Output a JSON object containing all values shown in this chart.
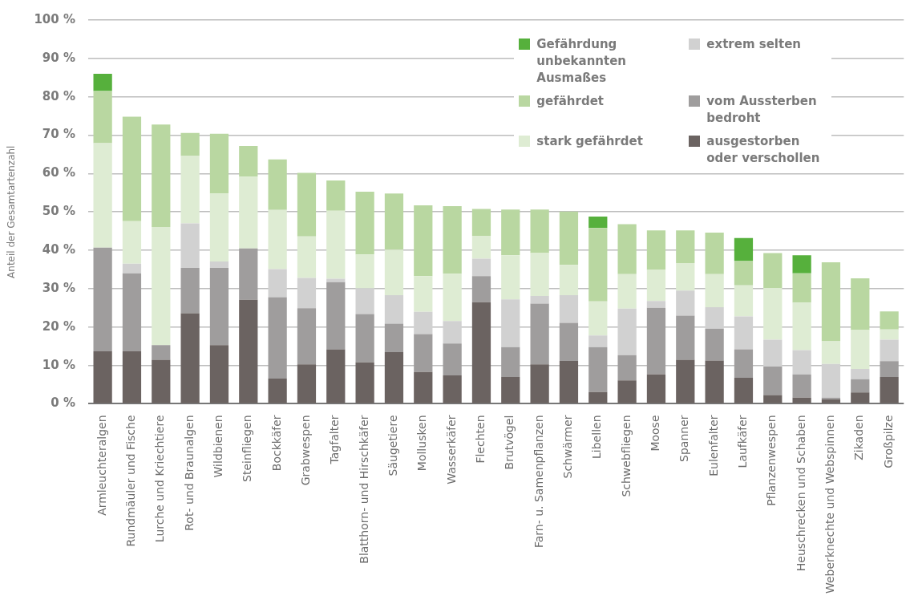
{
  "chart_data": {
    "type": "bar",
    "stacked": true,
    "ylabel": "Anteil der Gesamtartenzahl",
    "categories": [
      "Armleuchteralgen",
      "Rundmäuler und Fische",
      "Lurche und Kriechtiere",
      "Rot- und Braunalgen",
      "Wildbienen",
      "Steinfliegen",
      "Bockkäfer",
      "Grabwespen",
      "Tagfalter",
      "Blatthorn- und Hirschkäfer",
      "Säugetiere",
      "Mollusken",
      "Wasserkäfer",
      "Flechten",
      "Brutvögel",
      "Farn- u. Samenpflanzen",
      "Schwärmer",
      "Libellen",
      "Schwebfliegen",
      "Moose",
      "Spanner",
      "Eulenfalter",
      "Laufkäfer",
      "Pflanzenwespen",
      "Heuschrecken und Schaben",
      "Weberknechte und Webspinnen",
      "Zikaden",
      "Großpilze"
    ],
    "series": [
      {
        "name": "ausgestorben oder verschollen",
        "color": "#6b6361",
        "values": [
          13.7,
          13.7,
          11.5,
          23.6,
          15.3,
          27.1,
          6.6,
          10.3,
          14.2,
          10.8,
          13.5,
          8.3,
          7.4,
          26.5,
          7.0,
          10.3,
          11.2,
          3.1,
          6.1,
          7.7,
          11.5,
          11.3,
          6.8,
          2.3,
          1.6,
          1.2,
          3.0,
          7.0
        ]
      },
      {
        "name": "vom Aussterben bedroht",
        "color": "#9f9d9d",
        "values": [
          27.0,
          20.3,
          3.8,
          11.8,
          20.1,
          13.4,
          21.2,
          14.6,
          17.5,
          12.6,
          7.4,
          9.9,
          8.3,
          6.8,
          7.8,
          15.8,
          9.9,
          11.7,
          6.6,
          17.3,
          11.5,
          8.3,
          7.4,
          7.4,
          6.1,
          0.4,
          3.4,
          4.1
        ]
      },
      {
        "name": "extrem selten",
        "color": "#d1d1d1",
        "values": [
          null,
          2.5,
          null,
          11.6,
          1.7,
          null,
          7.3,
          7.9,
          0.9,
          6.7,
          7.4,
          5.8,
          5.9,
          4.5,
          12.4,
          2.0,
          7.2,
          3.0,
          12.1,
          1.8,
          6.5,
          5.6,
          8.6,
          7.0,
          6.3,
          8.8,
          2.7,
          5.6
        ]
      },
      {
        "name": "stark gefährdet",
        "color": "#deecd3",
        "values": [
          27.2,
          11.1,
          30.8,
          17.6,
          17.7,
          18.7,
          15.4,
          10.8,
          17.7,
          8.8,
          11.9,
          9.3,
          12.3,
          6.0,
          11.5,
          11.2,
          7.9,
          8.9,
          9.0,
          8.1,
          7.2,
          8.6,
          8.1,
          13.5,
          12.4,
          5.9,
          10.1,
          2.7
        ]
      },
      {
        "name": "gefährdet",
        "color": "#b9d7a1",
        "values": [
          13.6,
          27.2,
          26.7,
          6.0,
          15.6,
          8.0,
          13.2,
          16.6,
          7.9,
          16.4,
          14.6,
          18.4,
          17.6,
          7.0,
          11.9,
          11.3,
          13.9,
          19.1,
          13.0,
          10.3,
          8.5,
          10.8,
          6.3,
          9.1,
          7.6,
          20.6,
          13.5,
          4.7
        ]
      },
      {
        "name": "Gefährdung unbekannten Ausmaßes",
        "color": "#56b03c",
        "values": [
          4.5,
          null,
          null,
          null,
          null,
          null,
          null,
          null,
          null,
          null,
          null,
          null,
          null,
          null,
          null,
          null,
          null,
          3.0,
          null,
          null,
          null,
          null,
          6.0,
          null,
          4.7,
          null,
          null,
          null
        ]
      }
    ],
    "ylim": [
      0,
      100
    ],
    "yticks": [
      {
        "value": 0,
        "label": "0 %"
      },
      {
        "value": 10,
        "label": "10 %"
      },
      {
        "value": 20,
        "label": "20 %"
      },
      {
        "value": 30,
        "label": "30 %"
      },
      {
        "value": 40,
        "label": "40 %"
      },
      {
        "value": 50,
        "label": "50 %"
      },
      {
        "value": 60,
        "label": "60 %"
      },
      {
        "value": 70,
        "label": "70 %"
      },
      {
        "value": 80,
        "label": "80 %"
      },
      {
        "value": 90,
        "label": "90 %"
      },
      {
        "value": 100,
        "label": "100 %"
      }
    ],
    "grid": "y",
    "legend": "top right"
  }
}
